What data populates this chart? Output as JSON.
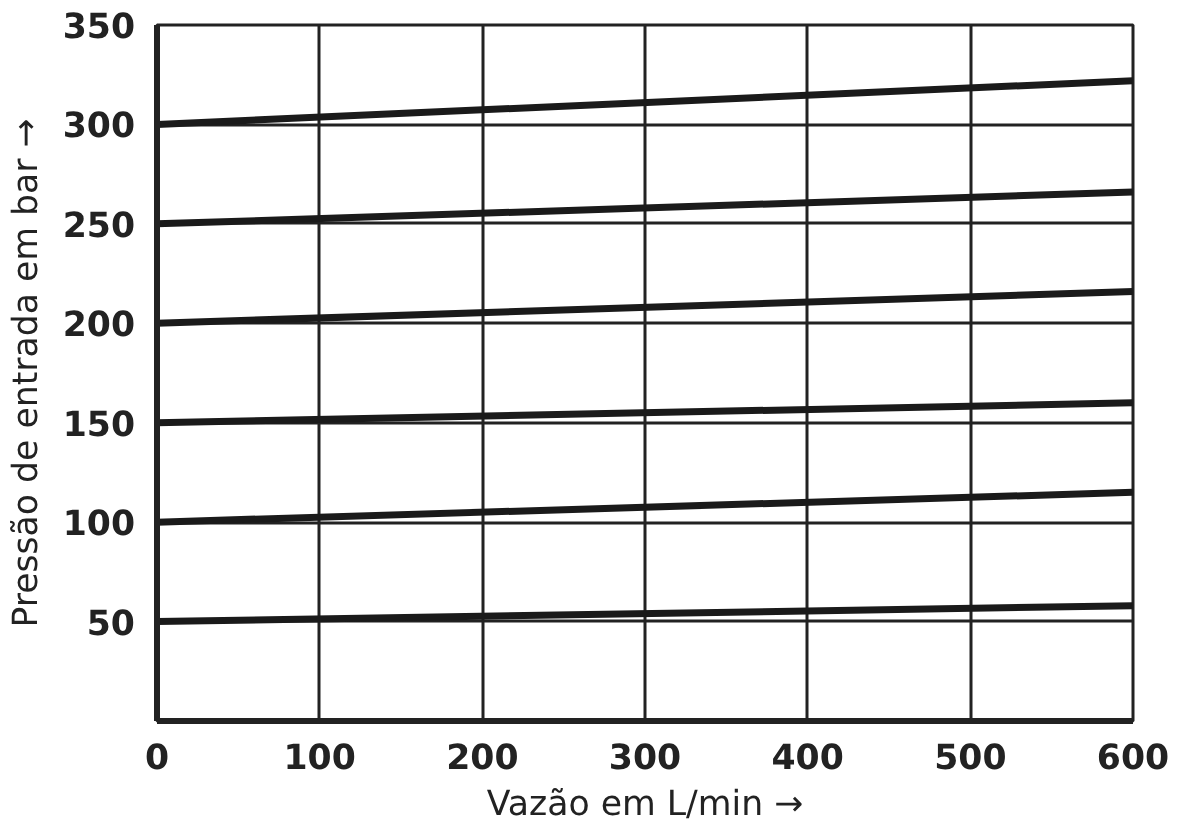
{
  "chart_data": {
    "type": "line",
    "xlabel": "Vazão em L/min →",
    "ylabel": "Pressão de entrada em bar →",
    "xlim": [
      0,
      600
    ],
    "ylim": [
      0,
      350
    ],
    "xticks": [
      0,
      100,
      200,
      300,
      400,
      500,
      600
    ],
    "yticks": [
      50,
      100,
      150,
      200,
      250,
      300,
      350
    ],
    "grid": true,
    "x": [
      0,
      600
    ],
    "series": [
      {
        "color": "#1a1a1a",
        "values": [
          300,
          322
        ]
      },
      {
        "color": "#1a1a1a",
        "values": [
          250,
          266
        ]
      },
      {
        "color": "#1a1a1a",
        "values": [
          200,
          216
        ]
      },
      {
        "color": "#1a1a1a",
        "values": [
          150,
          160
        ]
      },
      {
        "color": "#1a1a1a",
        "values": [
          100,
          115
        ]
      },
      {
        "color": "#1a1a1a",
        "values": [
          50,
          58
        ]
      }
    ]
  }
}
